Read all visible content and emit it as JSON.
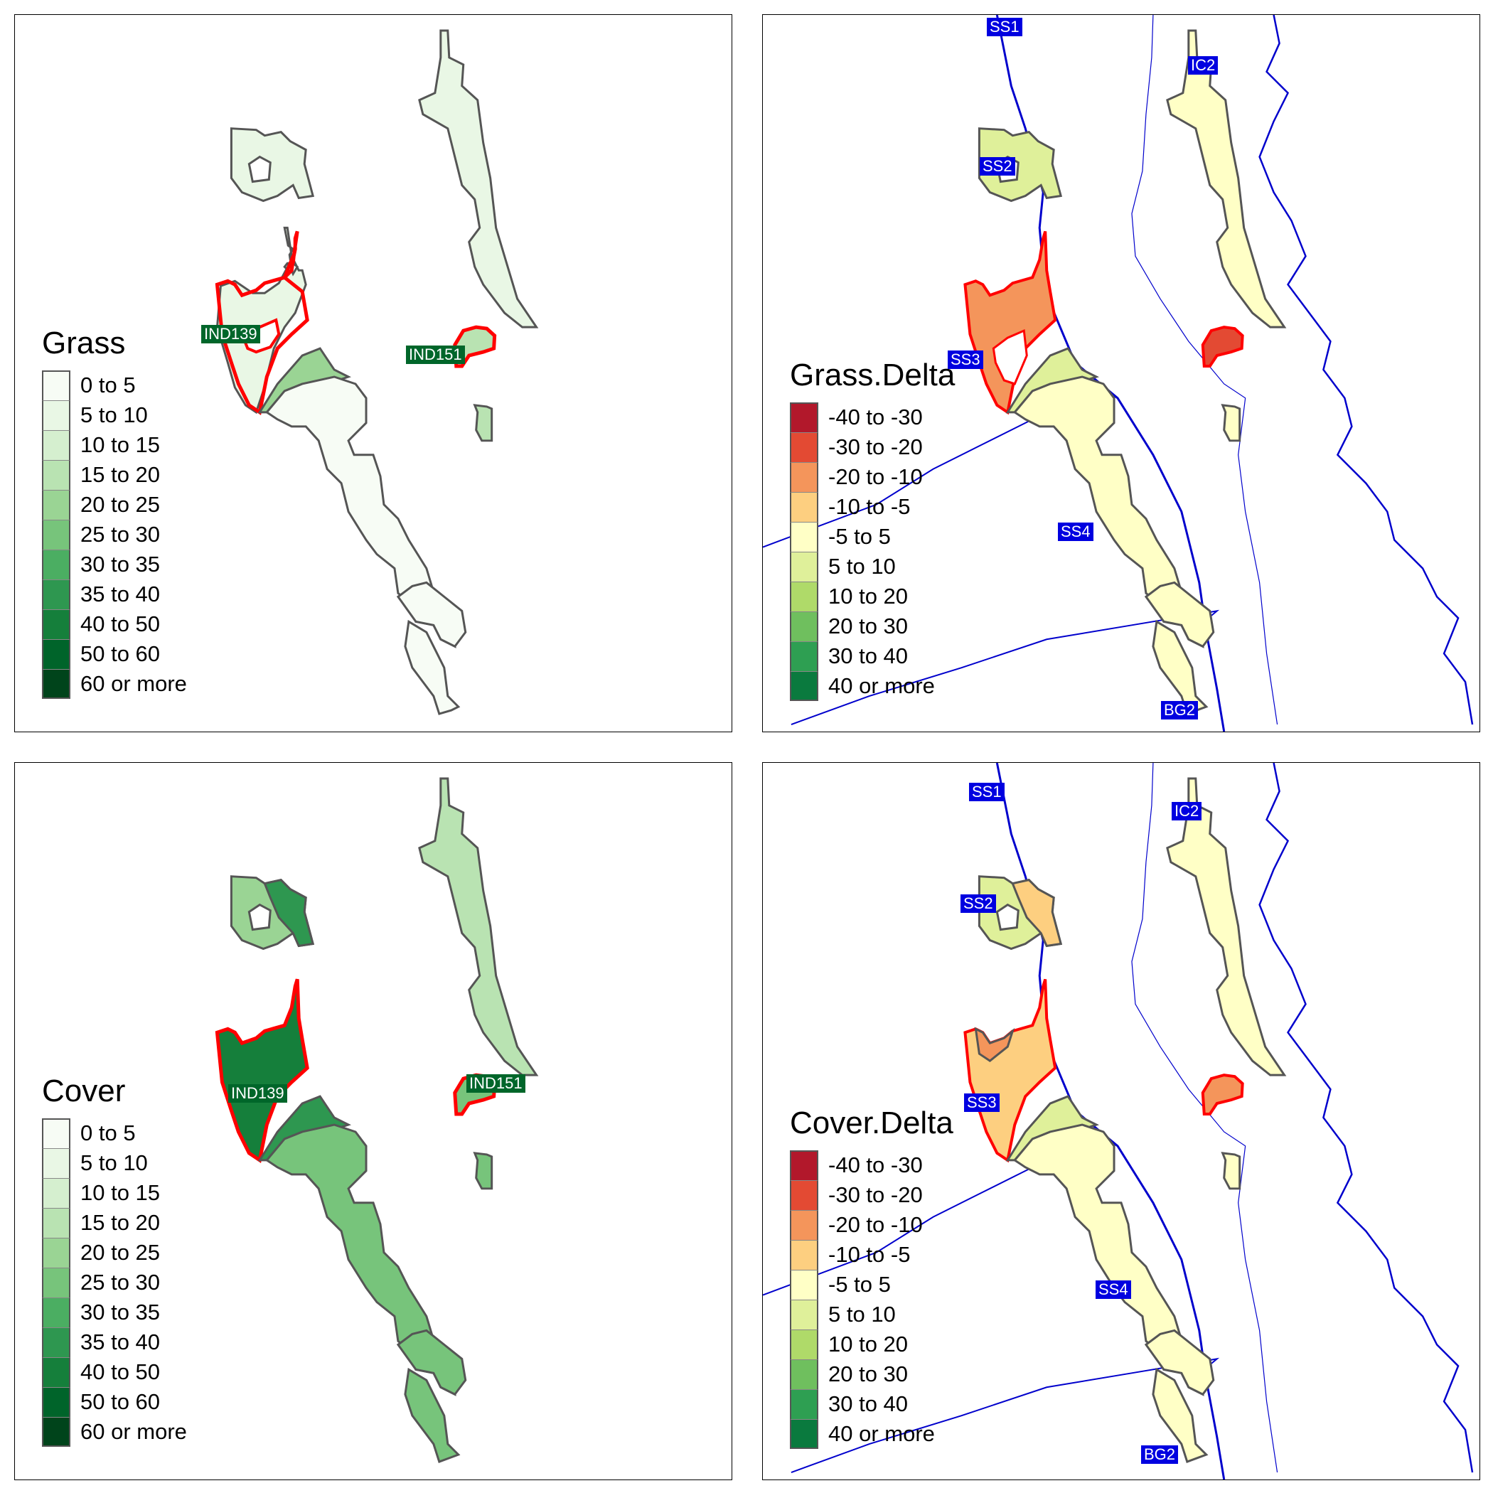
{
  "panels": [
    {
      "id": "grass",
      "legend_title": "Grass",
      "labels": [
        {
          "text": "IND139",
          "style": "green"
        },
        {
          "text": "IND151",
          "style": "green"
        }
      ]
    },
    {
      "id": "grass-delta",
      "legend_title": "Grass.Delta",
      "labels": [
        {
          "text": "SS1",
          "style": "blue"
        },
        {
          "text": "IC2",
          "style": "blue"
        },
        {
          "text": "SS2",
          "style": "blue"
        },
        {
          "text": "SS3",
          "style": "blue"
        },
        {
          "text": "SS4",
          "style": "blue"
        },
        {
          "text": "BG2",
          "style": "blue"
        }
      ]
    },
    {
      "id": "cover",
      "legend_title": "Cover",
      "labels": [
        {
          "text": "IND139",
          "style": "green"
        },
        {
          "text": "IND151",
          "style": "green"
        }
      ]
    },
    {
      "id": "cover-delta",
      "legend_title": "Cover.Delta",
      "labels": [
        {
          "text": "SS1",
          "style": "blue"
        },
        {
          "text": "IC2",
          "style": "blue"
        },
        {
          "text": "SS2",
          "style": "blue"
        },
        {
          "text": "SS3",
          "style": "blue"
        },
        {
          "text": "SS4",
          "style": "blue"
        },
        {
          "text": "BG2",
          "style": "blue"
        }
      ]
    }
  ],
  "legend_classes": {
    "absolute": [
      {
        "label": "0 to 5",
        "color": "#f7fcf5"
      },
      {
        "label": "5 to 10",
        "color": "#e9f7e5"
      },
      {
        "label": "10 to 15",
        "color": "#d5efcf"
      },
      {
        "label": "15 to 20",
        "color": "#b9e3b2"
      },
      {
        "label": "20 to 25",
        "color": "#9ad494"
      },
      {
        "label": "25 to 30",
        "color": "#77c47b"
      },
      {
        "label": "30 to 35",
        "color": "#4bae62"
      },
      {
        "label": "35 to 40",
        "color": "#2e9750"
      },
      {
        "label": "40 to 50",
        "color": "#157f3b"
      },
      {
        "label": "50 to 60",
        "color": "#00642a"
      },
      {
        "label": "60 or more",
        "color": "#00441b"
      }
    ],
    "delta": [
      {
        "label": "-40 to -30",
        "color": "#b2182b"
      },
      {
        "label": "-30 to -20",
        "color": "#e34a33"
      },
      {
        "label": "-20 to -10",
        "color": "#f4955b"
      },
      {
        "label": "-10 to -5",
        "color": "#fdcf80"
      },
      {
        "label": "-5 to 5",
        "color": "#ffffc6"
      },
      {
        "label": "5 to 10",
        "color": "#dff09a"
      },
      {
        "label": "10 to 20",
        "color": "#afda69"
      },
      {
        "label": "20 to 30",
        "color": "#6fbf5e"
      },
      {
        "label": "30 to 40",
        "color": "#2e9f52"
      },
      {
        "label": "40 or more",
        "color": "#0a7a3e"
      }
    ]
  },
  "colors": {
    "outline": "#555555",
    "highlight": "#ff0000",
    "river": "#0000cc"
  }
}
